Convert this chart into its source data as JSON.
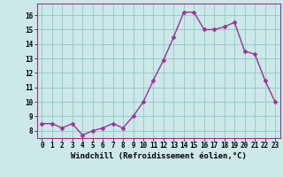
{
  "x": [
    0,
    1,
    2,
    3,
    4,
    5,
    6,
    7,
    8,
    9,
    10,
    11,
    12,
    13,
    14,
    15,
    16,
    17,
    18,
    19,
    20,
    21,
    22,
    23
  ],
  "y": [
    8.5,
    8.5,
    8.2,
    8.5,
    7.7,
    8.0,
    8.2,
    8.5,
    8.2,
    9.0,
    10.0,
    11.5,
    12.9,
    14.5,
    16.2,
    16.2,
    15.0,
    15.0,
    15.2,
    15.5,
    13.5,
    13.3,
    11.5,
    10.0
  ],
  "bg_color": "#cce8e8",
  "line_color": "#993399",
  "marker_color": "#993399",
  "grid_color": "#99cccc",
  "xlabel": "Windchill (Refroidissement éolien,°C)",
  "ylim": [
    7.5,
    16.8
  ],
  "xlim": [
    -0.5,
    23.5
  ],
  "yticks": [
    8,
    9,
    10,
    11,
    12,
    13,
    14,
    15,
    16
  ],
  "xticks": [
    0,
    1,
    2,
    3,
    4,
    5,
    6,
    7,
    8,
    9,
    10,
    11,
    12,
    13,
    14,
    15,
    16,
    17,
    18,
    19,
    20,
    21,
    22,
    23
  ],
  "tick_fontsize": 5.5,
  "xlabel_fontsize": 6.5,
  "line_width": 1.0,
  "marker_size": 2.5
}
